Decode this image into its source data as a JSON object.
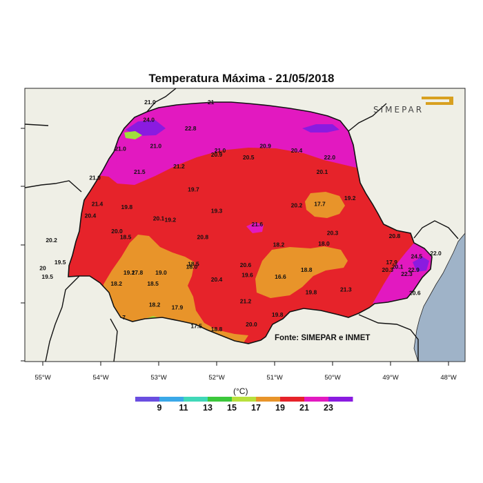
{
  "title": "Temperatura Máxima - 21/05/2018",
  "source": "Fonte: SIMEPAR e INMET",
  "logo_text": "SIMEPAR",
  "legend": {
    "unit": "(°C)",
    "ticks": [
      "9",
      "11",
      "13",
      "15",
      "17",
      "19",
      "21",
      "23"
    ],
    "colors": [
      "#6a4ee0",
      "#3aa8e8",
      "#40d8b8",
      "#3cc83c",
      "#b8e03c",
      "#e8942a",
      "#e6232a",
      "#e219c0",
      "#8a1be0"
    ]
  },
  "axis": {
    "x_ticks": [
      "55°W",
      "54°W",
      "53°W",
      "52°W",
      "51°W",
      "50°W",
      "49°W",
      "48°W"
    ]
  },
  "colors": {
    "land_bg": "#efefe6",
    "ocean": "#9fb3c8",
    "temp_17_19": "#e8942a",
    "temp_19_21": "#e6232a",
    "temp_21_23": "#e219c0",
    "temp_23_25": "#8a1be0",
    "temp_15_17": "#a0e03c"
  },
  "stations": [
    {
      "t": "21.0",
      "lon": -53.15,
      "lat": -22.55
    },
    {
      "t": "21",
      "lon": -52.1,
      "lat": -22.55
    },
    {
      "t": "24.0",
      "lon": -53.17,
      "lat": -22.85
    },
    {
      "t": "22.8",
      "lon": -52.45,
      "lat": -23.0
    },
    {
      "t": "21.0",
      "lon": -53.66,
      "lat": -23.35
    },
    {
      "t": "21.0",
      "lon": -53.05,
      "lat": -23.3
    },
    {
      "t": "21.0",
      "lon": -51.94,
      "lat": -23.38
    },
    {
      "t": "20.9",
      "lon": -52.0,
      "lat": -23.45
    },
    {
      "t": "20.9",
      "lon": -51.16,
      "lat": -23.3
    },
    {
      "t": "20.4",
      "lon": -50.62,
      "lat": -23.38
    },
    {
      "t": "20.5",
      "lon": -51.45,
      "lat": -23.5
    },
    {
      "t": "22.0",
      "lon": -50.05,
      "lat": -23.5
    },
    {
      "t": "21.2",
      "lon": -52.65,
      "lat": -23.65
    },
    {
      "t": "21.5",
      "lon": -53.33,
      "lat": -23.75
    },
    {
      "t": "20.1",
      "lon": -50.18,
      "lat": -23.75
    },
    {
      "t": "21.0",
      "lon": -54.1,
      "lat": -23.85
    },
    {
      "t": "19.7",
      "lon": -52.4,
      "lat": -24.05
    },
    {
      "t": "17.7",
      "lon": -50.22,
      "lat": -24.3
    },
    {
      "t": "19.2",
      "lon": -49.7,
      "lat": -24.2
    },
    {
      "t": "21.4",
      "lon": -54.06,
      "lat": -24.3
    },
    {
      "t": "19.8",
      "lon": -53.55,
      "lat": -24.35
    },
    {
      "t": "20.2",
      "lon": -50.62,
      "lat": -24.32
    },
    {
      "t": "19.3",
      "lon": -52.0,
      "lat": -24.42
    },
    {
      "t": "20.4",
      "lon": -54.18,
      "lat": -24.5
    },
    {
      "t": "20.1",
      "lon": -53.0,
      "lat": -24.55
    },
    {
      "t": "19.2",
      "lon": -52.8,
      "lat": -24.57
    },
    {
      "t": "21.6",
      "lon": -51.3,
      "lat": -24.65
    },
    {
      "t": "20.0",
      "lon": -53.72,
      "lat": -24.77
    },
    {
      "t": "20.3",
      "lon": -50.0,
      "lat": -24.8
    },
    {
      "t": "20.8",
      "lon": -48.93,
      "lat": -24.85
    },
    {
      "t": "18.5",
      "lon": -53.57,
      "lat": -24.87
    },
    {
      "t": "20.8",
      "lon": -52.24,
      "lat": -24.87
    },
    {
      "t": "20.2",
      "lon": -54.85,
      "lat": -24.92
    },
    {
      "t": "18.2",
      "lon": -50.93,
      "lat": -25.0
    },
    {
      "t": "18.0",
      "lon": -50.15,
      "lat": -24.98
    },
    {
      "t": "22.0",
      "lon": -48.22,
      "lat": -25.15
    },
    {
      "t": "19.5",
      "lon": -54.7,
      "lat": -25.3
    },
    {
      "t": "18.5",
      "lon": -52.4,
      "lat": -25.33
    },
    {
      "t": "20.6",
      "lon": -51.5,
      "lat": -25.35
    },
    {
      "t": "17.9",
      "lon": -48.98,
      "lat": -25.3
    },
    {
      "t": "24.5",
      "lon": -48.55,
      "lat": -25.2
    },
    {
      "t": "18.0",
      "lon": -52.43,
      "lat": -25.38
    },
    {
      "t": "20.1",
      "lon": -48.88,
      "lat": -25.38
    },
    {
      "t": "18.8",
      "lon": -50.45,
      "lat": -25.43
    },
    {
      "t": "20.3",
      "lon": -49.05,
      "lat": -25.43
    },
    {
      "t": "22.9",
      "lon": -48.6,
      "lat": -25.43
    },
    {
      "t": "20",
      "lon": -55.0,
      "lat": -25.4
    },
    {
      "t": "19.2",
      "lon": -53.51,
      "lat": -25.48
    },
    {
      "t": "17.8",
      "lon": -53.37,
      "lat": -25.48
    },
    {
      "t": "19.0",
      "lon": -52.96,
      "lat": -25.48
    },
    {
      "t": "19.6",
      "lon": -51.47,
      "lat": -25.52
    },
    {
      "t": "16.6",
      "lon": -50.9,
      "lat": -25.55
    },
    {
      "t": "22.3",
      "lon": -48.72,
      "lat": -25.5
    },
    {
      "t": "19.5",
      "lon": -54.92,
      "lat": -25.55
    },
    {
      "t": "20.4",
      "lon": -52.0,
      "lat": -25.6
    },
    {
      "t": "18.2",
      "lon": -53.73,
      "lat": -25.67
    },
    {
      "t": "18.5",
      "lon": -53.1,
      "lat": -25.67
    },
    {
      "t": "21.3",
      "lon": -49.77,
      "lat": -25.77
    },
    {
      "t": "19.8",
      "lon": -50.37,
      "lat": -25.82
    },
    {
      "t": "20.6",
      "lon": -48.58,
      "lat": -25.83
    },
    {
      "t": "21.2",
      "lon": -51.5,
      "lat": -25.97
    },
    {
      "t": "18.2",
      "lon": -53.07,
      "lat": -26.03
    },
    {
      "t": "17.9",
      "lon": -52.68,
      "lat": -26.08
    },
    {
      "t": "19.8",
      "lon": -50.95,
      "lat": -26.2
    },
    {
      "t": "7",
      "lon": -53.6,
      "lat": -26.25
    },
    {
      "t": "20.0",
      "lon": -51.4,
      "lat": -26.37
    },
    {
      "t": "17.5",
      "lon": -52.35,
      "lat": -26.4
    },
    {
      "t": "18.8",
      "lon": -52.0,
      "lat": -26.45
    }
  ]
}
